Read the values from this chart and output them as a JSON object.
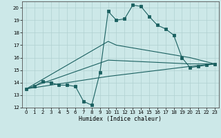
{
  "xlabel": "Humidex (Indice chaleur)",
  "xlim": [
    -0.5,
    23.5
  ],
  "ylim": [
    12,
    20.5
  ],
  "background_color": "#cce8e8",
  "grid_color": "#b0d0d0",
  "line_color": "#1a6060",
  "lines": [
    {
      "x": [
        0,
        1,
        2,
        3,
        4,
        5,
        6,
        7,
        8,
        9,
        10,
        11,
        12,
        13,
        14,
        15,
        16,
        17,
        18,
        19,
        20,
        21,
        22,
        23
      ],
      "y": [
        13.5,
        13.7,
        14.1,
        14.0,
        13.8,
        13.8,
        13.7,
        12.5,
        12.2,
        14.8,
        19.7,
        19.0,
        19.1,
        20.2,
        20.1,
        19.3,
        18.6,
        18.3,
        17.8,
        16.0,
        15.2,
        15.3,
        15.4,
        15.5
      ],
      "marker": true
    },
    {
      "x": [
        0,
        10,
        11,
        20,
        23
      ],
      "y": [
        13.5,
        17.3,
        17.0,
        16.0,
        15.5
      ],
      "marker": false
    },
    {
      "x": [
        0,
        10,
        20,
        23
      ],
      "y": [
        13.5,
        15.8,
        15.5,
        15.5
      ],
      "marker": false
    },
    {
      "x": [
        0,
        10,
        20,
        23
      ],
      "y": [
        13.5,
        14.5,
        15.3,
        15.5
      ],
      "marker": false
    }
  ],
  "xticks": [
    0,
    1,
    2,
    3,
    4,
    5,
    6,
    7,
    8,
    9,
    10,
    11,
    12,
    13,
    14,
    15,
    16,
    17,
    18,
    19,
    20,
    21,
    22,
    23
  ],
  "yticks": [
    12,
    13,
    14,
    15,
    16,
    17,
    18,
    19,
    20
  ],
  "tick_fontsize": 5.0,
  "label_fontsize": 6.0,
  "figure_width": 3.2,
  "figure_height": 2.0,
  "dpi": 100
}
